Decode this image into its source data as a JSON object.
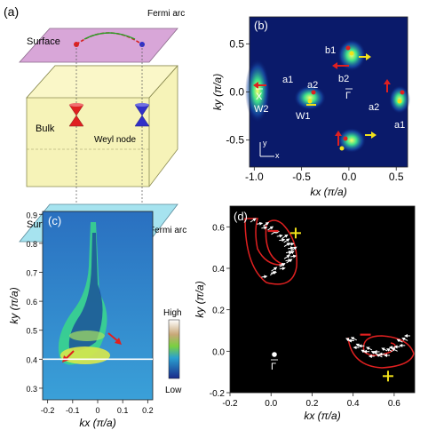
{
  "panels": {
    "a": {
      "tag": "(a)",
      "surface_top": "Surface",
      "surface_bottom": "Surface",
      "bulk": "Bulk",
      "weyl_node": "Weyl node",
      "fermi_arc_top": "Fermi arc",
      "fermi_arc_bottom": "Fermi arc"
    },
    "b": {
      "tag": "(b)",
      "points": {
        "Xbar": "X",
        "W2": "W2",
        "W1": "W1",
        "a1_left": "a1",
        "a2_left": "a2",
        "b1": "b1",
        "b2": "b2",
        "Gbar": "Γ",
        "a2_right": "a2",
        "a1_right": "a1"
      },
      "axis_small_x": "x",
      "axis_small_y": "y"
    },
    "c": {
      "tag": "(c)",
      "colorbar_high": "High",
      "colorbar_low": "Low"
    },
    "d": {
      "tag": "(d)",
      "gamma_label": "Γ"
    }
  },
  "chart_data": [
    {
      "panel": "b",
      "type": "heatmap",
      "xlabel": "kx (π/a)",
      "ylabel": "ky (π/a)",
      "xlim": [
        -1.05,
        0.62
      ],
      "ylim": [
        -0.78,
        0.78
      ],
      "xticks": [
        -1.0,
        -0.5,
        0.0,
        0.5
      ],
      "yticks": [
        -0.5,
        0.0,
        0.5
      ],
      "xtick_labels": [
        "-1.0",
        "-0.5",
        "0.0",
        "0.5"
      ],
      "ytick_labels": [
        "-0.5",
        "0.0",
        "0.5"
      ]
    },
    {
      "panel": "c",
      "type": "heatmap",
      "xlabel": "kx (π/a)",
      "ylabel": "ky (π/a)",
      "xlim": [
        -0.22,
        0.22
      ],
      "ylim": [
        0.26,
        0.91
      ],
      "xticks": [
        -0.2,
        -0.1,
        0.0,
        0.1,
        0.2
      ],
      "yticks": [
        0.3,
        0.4,
        0.5,
        0.6,
        0.7,
        0.8,
        0.9
      ],
      "xtick_labels": [
        "-0.2",
        "-0.1",
        "0",
        "0.1",
        "0.2"
      ],
      "ytick_labels": [
        "0.3",
        "0.4",
        "0.5",
        "0.6",
        "0.7",
        "0.8",
        "0.9"
      ],
      "cut_ky": 0.4
    },
    {
      "panel": "d",
      "type": "scatter",
      "xlabel": "kx (π/a)",
      "ylabel": "ky (π/a)",
      "xlim": [
        -0.2,
        0.7
      ],
      "ylim": [
        -0.2,
        0.7
      ],
      "xticks": [
        -0.2,
        0.0,
        0.2,
        0.4,
        0.6
      ],
      "yticks": [
        -0.2,
        0.0,
        0.2,
        0.4,
        0.6
      ],
      "xtick_labels": [
        "-0.2",
        "0.0",
        "0.2",
        "0.4",
        "0.6"
      ],
      "ytick_labels": [
        "-0.2",
        "0.0",
        "0.2",
        "0.4",
        "0.6"
      ],
      "gamma_point": [
        0.0,
        0.0
      ],
      "plus_markers": [
        [
          0.12,
          0.57
        ],
        [
          0.57,
          -0.12
        ]
      ],
      "minus_markers": [
        [
          0.01,
          0.58
        ],
        [
          0.46,
          0.08
        ]
      ]
    }
  ],
  "colors": {
    "surface_top": "#d8a6d8",
    "surface_bottom": "#a6e3ef",
    "bulk": "#f6f3b8",
    "arc": "#d42020",
    "node_red": "#e02020",
    "node_blue": "#3030c8",
    "map_bg": "#0a1a6a",
    "accent_arrow_red": "#e02020",
    "accent_arrow_yellow": "#f2e21a"
  }
}
